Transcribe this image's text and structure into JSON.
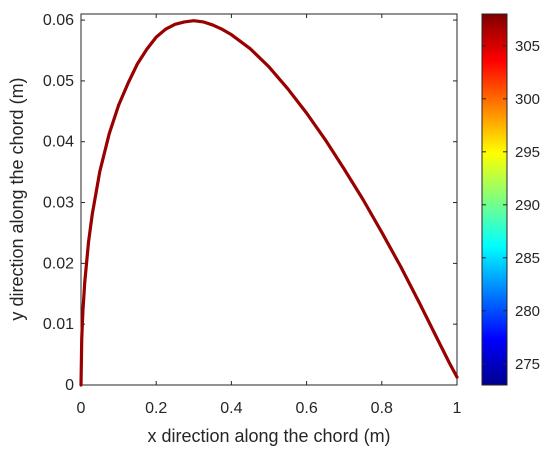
{
  "chart_data": {
    "type": "line",
    "xlabel": "x direction along the chord (m)",
    "ylabel": "y direction along the chord (m)",
    "xlim": [
      0,
      1
    ],
    "ylim": [
      0,
      0.061
    ],
    "x_ticks": [
      0,
      0.2,
      0.4,
      0.6,
      0.8,
      1
    ],
    "x_tick_labels": [
      "0",
      "0.2",
      "0.4",
      "0.6",
      "0.8",
      "1"
    ],
    "y_ticks": [
      0,
      0.01,
      0.02,
      0.03,
      0.04,
      0.05,
      0.06
    ],
    "y_tick_labels": [
      "0",
      "0.01",
      "0.02",
      "0.03",
      "0.04",
      "0.05",
      "0.06"
    ],
    "grid": false,
    "series": [
      {
        "x": [
          0,
          0.002,
          0.005,
          0.01,
          0.02,
          0.03,
          0.05,
          0.075,
          0.1,
          0.125,
          0.15,
          0.175,
          0.2,
          0.225,
          0.25,
          0.275,
          0.3,
          0.325,
          0.35,
          0.375,
          0.4,
          0.45,
          0.5,
          0.55,
          0.6,
          0.65,
          0.7,
          0.75,
          0.8,
          0.85,
          0.9,
          0.95,
          0.98,
          1.0
        ],
        "y": [
          0.0,
          0.0077,
          0.0121,
          0.0169,
          0.0235,
          0.0281,
          0.0351,
          0.0413,
          0.046,
          0.0496,
          0.0528,
          0.0552,
          0.0572,
          0.0585,
          0.0593,
          0.0597,
          0.0599,
          0.0597,
          0.0592,
          0.0585,
          0.0576,
          0.0553,
          0.0523,
          0.0487,
          0.0447,
          0.0403,
          0.0355,
          0.0305,
          0.0251,
          0.0195,
          0.0135,
          0.0073,
          0.0036,
          0.0013
        ],
        "color": "#990000"
      }
    ],
    "colorbar": {
      "min": 273,
      "max": 308,
      "ticks": [
        275,
        280,
        285,
        290,
        295,
        300,
        305
      ],
      "tick_labels": [
        "275",
        "280",
        "285",
        "290",
        "295",
        "300",
        "305"
      ],
      "colormap": "jet"
    }
  }
}
